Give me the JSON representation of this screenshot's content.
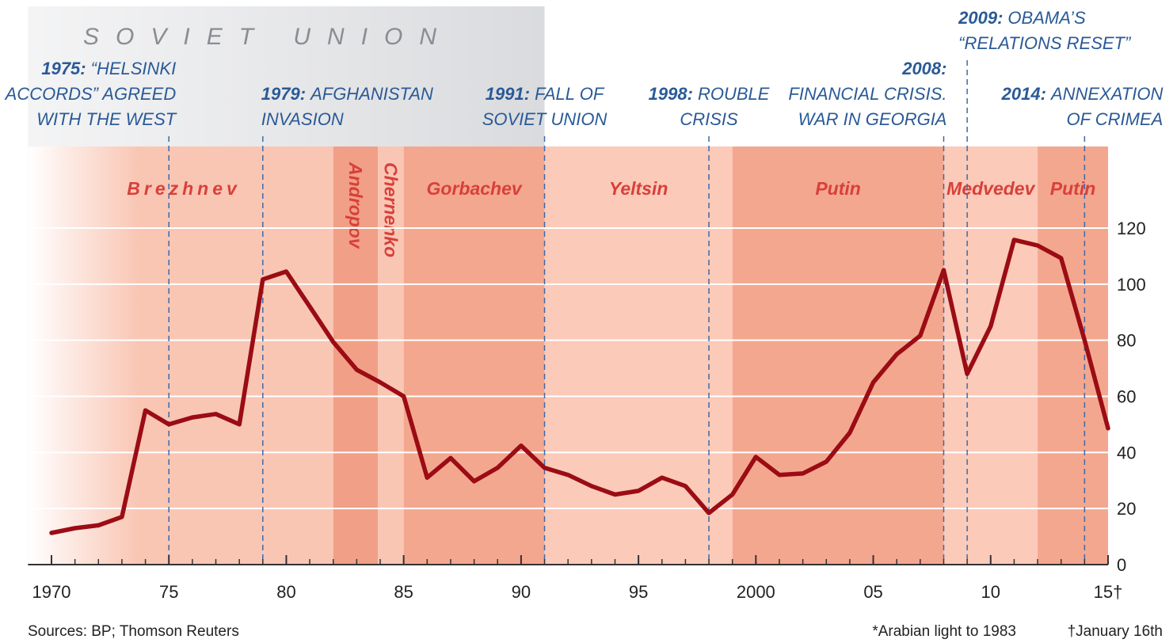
{
  "chart_data": {
    "type": "line",
    "x": [
      1970,
      1971,
      1972,
      1973,
      1974,
      1975,
      1976,
      1977,
      1978,
      1979,
      1980,
      1981,
      1982,
      1983,
      1984,
      1985,
      1986,
      1987,
      1988,
      1989,
      1990,
      1991,
      1992,
      1993,
      1994,
      1995,
      1996,
      1997,
      1998,
      1999,
      2000,
      2001,
      2002,
      2003,
      2004,
      2005,
      2006,
      2007,
      2008,
      2009,
      2010,
      2011,
      2012,
      2013,
      2014,
      2015
    ],
    "values": [
      11.3,
      13,
      14,
      17,
      55,
      50,
      52.5,
      53.7,
      50,
      101.7,
      104.5,
      92,
      79.4,
      69.5,
      65,
      60,
      31,
      38,
      29.7,
      34.5,
      42.4,
      34.5,
      32,
      28,
      25,
      26.3,
      31,
      28,
      18.4,
      25,
      38.4,
      32,
      32.5,
      36.7,
      47,
      65,
      75,
      81.6,
      105,
      68,
      85,
      115.8,
      113.8,
      109.3,
      80,
      48.6
    ],
    "color": "#9b0c14",
    "xlim": [
      1969,
      2015
    ],
    "xticks": [
      1970,
      {
        "value": 1975,
        "label": "75"
      },
      {
        "value": 1980,
        "label": "80"
      },
      {
        "value": 1985,
        "label": "85"
      },
      {
        "value": 1990,
        "label": "90"
      },
      {
        "value": 1995,
        "label": "95"
      },
      2000,
      {
        "value": 2005,
        "label": "05"
      },
      {
        "value": 2010,
        "label": "10"
      },
      {
        "value": 2015,
        "label": "15†"
      }
    ],
    "ylim": [
      0,
      120
    ],
    "yticks": [
      0,
      20,
      40,
      60,
      80,
      100,
      120
    ],
    "grid": true,
    "region": {
      "name": "SOVIET UNION",
      "start": 1969,
      "end": 1991,
      "color": "#dadbde"
    },
    "leaders": [
      {
        "name": "Brezhnev",
        "start": 1969,
        "end": 1982,
        "color": "#f9c6b4"
      },
      {
        "name": "Andropov",
        "start": 1982,
        "end": 1983.9,
        "color": "#f19f86"
      },
      {
        "name": "Chernenko",
        "start": 1983.9,
        "end": 1985,
        "color": "#f9c6b4"
      },
      {
        "name": "Gorbachev",
        "start": 1985,
        "end": 1991,
        "color": "#f4a78f"
      },
      {
        "name": "Yeltsin",
        "start": 1991,
        "end": 1999,
        "color": "#fbcab9"
      },
      {
        "name": "Putin",
        "start": 1999,
        "end": 2008,
        "color": "#f4a78f"
      },
      {
        "name": "Medvedev",
        "start": 2008,
        "end": 2012,
        "color": "#fbcab9"
      },
      {
        "name": "Putin",
        "start": 2012,
        "end": 2015,
        "color": "#f4a78f"
      }
    ],
    "events": [
      {
        "year": 1975,
        "label": "1975:",
        "lines": [
          "“HELSINKI",
          "ACCORDS” AGREED",
          "WITH THE WEST"
        ]
      },
      {
        "year": 1979,
        "label": "1979:",
        "lines": [
          "AFGHANISTAN",
          "INVASION"
        ]
      },
      {
        "year": 1991,
        "label": "1991:",
        "lines": [
          "FALL OF",
          "SOVIET UNION"
        ]
      },
      {
        "year": 1998,
        "label": "1998:",
        "lines": [
          "ROUBLE",
          "CRISIS"
        ]
      },
      {
        "year": 2008,
        "label": "2008:",
        "lines": [
          "FINANCIAL CRISIS.",
          "WAR IN GEORGIA"
        ]
      },
      {
        "year": 2009,
        "label": "2009:",
        "lines": [
          "OBAMA’S",
          "“RELATIONS RESET”"
        ]
      },
      {
        "year": 2014,
        "label": "2014:",
        "lines": [
          "ANNEXATION",
          "OF CRIMEA"
        ]
      }
    ],
    "source": "Sources: BP; Thomson Reuters",
    "footnotes": [
      "*Arabian light to 1983",
      "†January 16th"
    ]
  }
}
